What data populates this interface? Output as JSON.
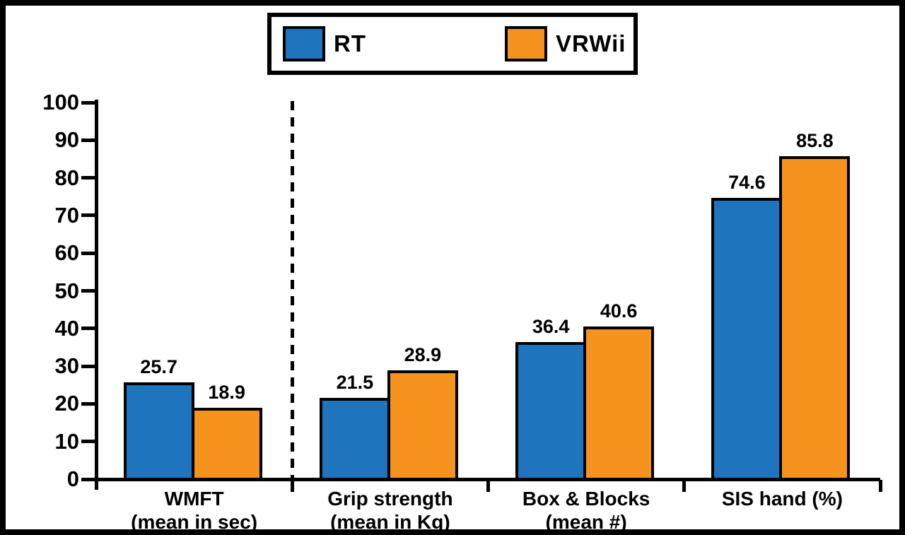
{
  "figure": {
    "background_color": "#ffffff",
    "frame_color": "#000000"
  },
  "legend": {
    "items": [
      {
        "label": "RT",
        "color": "#1E74BD"
      },
      {
        "label": "VRWii",
        "color": "#F6931F"
      }
    ]
  },
  "chart_data": {
    "type": "bar",
    "title": "",
    "xlabel": "",
    "ylabel": "",
    "categories": [
      "WMFT (mean in sec)",
      "Grip strength (mean in Kg)",
      "Box & Blocks (mean #)",
      "SIS hand (%)"
    ],
    "category_lines": [
      [
        "WMFT",
        "(mean in sec)"
      ],
      [
        "Grip strength",
        "(mean in Kg)"
      ],
      [
        "Box & Blocks",
        "(mean #)"
      ],
      [
        "SIS hand (%)"
      ]
    ],
    "series": [
      {
        "name": "RT",
        "color": "#1E74BD",
        "values": [
          25.7,
          21.5,
          36.4,
          74.6
        ]
      },
      {
        "name": "VRWii",
        "color": "#F6931F",
        "values": [
          18.9,
          28.9,
          40.6,
          85.8
        ]
      }
    ],
    "value_labels": [
      [
        "25.7",
        "21.5",
        "36.4",
        "74.6"
      ],
      [
        "18.9",
        "28.9",
        "40.6",
        "85.8"
      ]
    ],
    "ylim": [
      0,
      100
    ],
    "yticks": [
      0,
      10,
      20,
      30,
      40,
      50,
      60,
      70,
      80,
      90,
      100
    ],
    "grid": false,
    "legend_position": "top-center",
    "separator_after_category_index": 0,
    "bar_borders": true
  }
}
